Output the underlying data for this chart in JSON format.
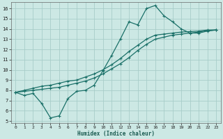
{
  "xlabel": "Humidex (Indice chaleur)",
  "ylabel": "",
  "xlim": [
    -0.5,
    23.5
  ],
  "ylim": [
    4.8,
    16.6
  ],
  "xticks": [
    0,
    1,
    2,
    3,
    4,
    5,
    6,
    7,
    8,
    9,
    10,
    11,
    12,
    13,
    14,
    15,
    16,
    17,
    18,
    19,
    20,
    21,
    22,
    23
  ],
  "yticks": [
    5,
    6,
    7,
    8,
    9,
    10,
    11,
    12,
    13,
    14,
    15,
    16
  ],
  "background_color": "#cce8e4",
  "grid_color": "#a8cdc9",
  "line_color": "#1a7068",
  "line1_x": [
    0,
    1,
    2,
    3,
    4,
    5,
    6,
    7,
    8,
    9,
    10,
    11,
    12,
    13,
    14,
    15,
    16,
    17,
    18,
    19,
    20,
    21,
    22,
    23
  ],
  "line1_y": [
    7.8,
    7.5,
    7.7,
    6.7,
    5.3,
    5.5,
    7.2,
    7.9,
    8.0,
    8.5,
    9.9,
    11.4,
    13.0,
    14.7,
    14.4,
    16.0,
    16.3,
    15.3,
    14.7,
    14.0,
    13.6,
    13.6,
    13.8,
    13.9
  ],
  "line2_x": [
    0,
    1,
    2,
    3,
    4,
    5,
    6,
    7,
    8,
    9,
    10,
    11,
    12,
    13,
    14,
    15,
    16,
    17,
    18,
    19,
    20,
    21,
    22,
    23
  ],
  "line2_y": [
    7.8,
    7.9,
    8.0,
    8.1,
    8.2,
    8.3,
    8.5,
    8.7,
    8.9,
    9.2,
    9.6,
    10.1,
    10.6,
    11.2,
    11.9,
    12.5,
    13.0,
    13.2,
    13.4,
    13.5,
    13.6,
    13.7,
    13.85,
    13.9
  ],
  "line3_x": [
    0,
    1,
    2,
    3,
    4,
    5,
    6,
    7,
    8,
    9,
    10,
    11,
    12,
    13,
    14,
    15,
    16,
    17,
    18,
    19,
    20,
    21,
    22,
    23
  ],
  "line3_y": [
    7.8,
    8.0,
    8.2,
    8.4,
    8.5,
    8.7,
    8.9,
    9.0,
    9.3,
    9.6,
    10.0,
    10.5,
    11.1,
    11.8,
    12.4,
    13.0,
    13.4,
    13.5,
    13.6,
    13.7,
    13.75,
    13.8,
    13.9,
    13.9
  ]
}
